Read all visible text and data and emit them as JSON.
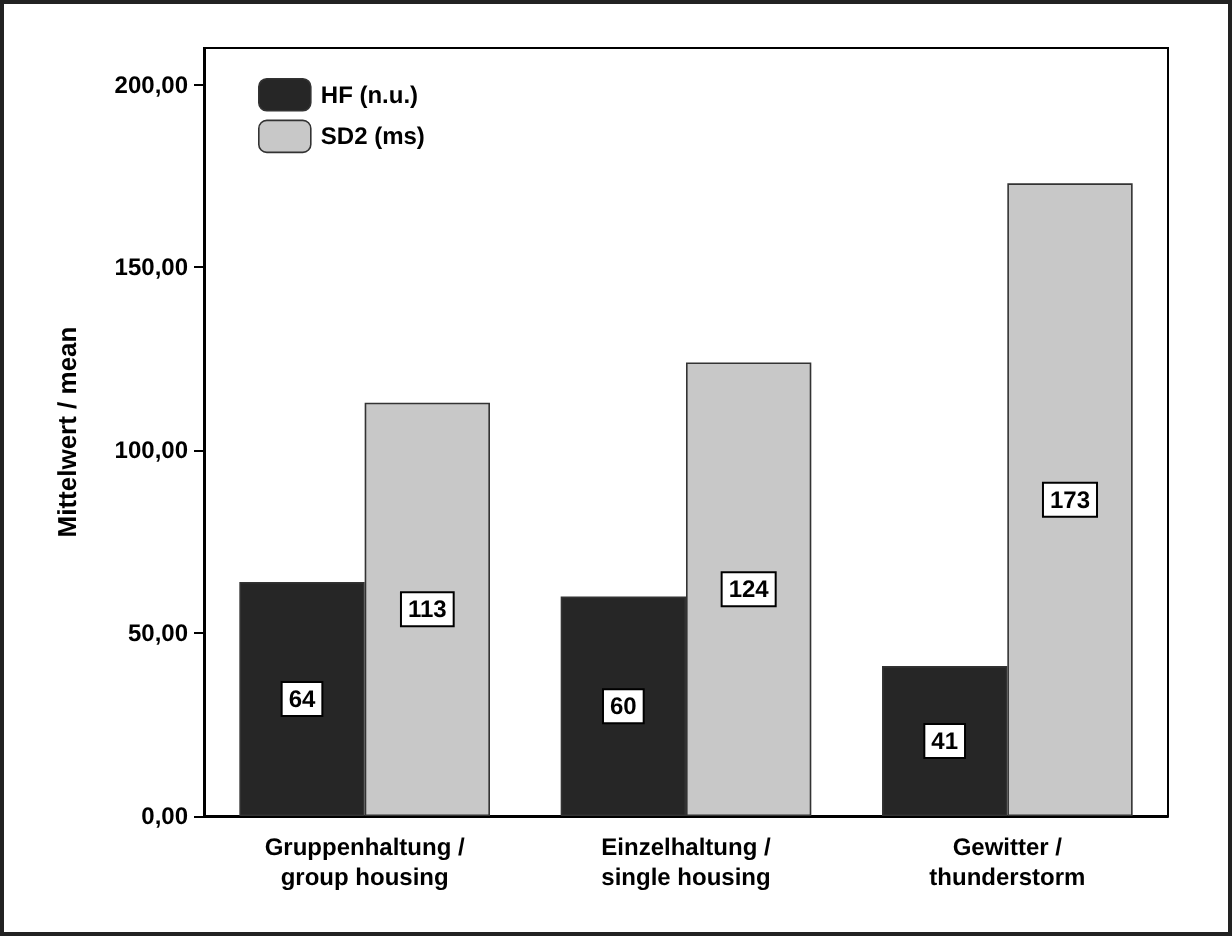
{
  "chart_data": {
    "type": "bar",
    "ylabel": "Mittelwert / mean",
    "categories": [
      "Gruppenhaltung /\ngroup housing",
      "Einzelhaltung /\nsingle housing",
      "Gewitter /\nthunderstorm"
    ],
    "series": [
      {
        "name": "HF (n.u.)",
        "color": "#262626",
        "values": [
          64,
          60,
          41
        ]
      },
      {
        "name": "SD2 (ms)",
        "color": "#c8c8c8",
        "values": [
          113,
          124,
          173
        ]
      }
    ],
    "ylim": [
      0,
      210
    ],
    "yticks": [
      {
        "value": 0,
        "label": "0,00"
      },
      {
        "value": 50,
        "label": "50,00"
      },
      {
        "value": 100,
        "label": "100,00"
      },
      {
        "value": 150,
        "label": "150,00"
      },
      {
        "value": 200,
        "label": "200,00"
      }
    ],
    "data_labels": true,
    "grid": false,
    "legend": "top left"
  }
}
